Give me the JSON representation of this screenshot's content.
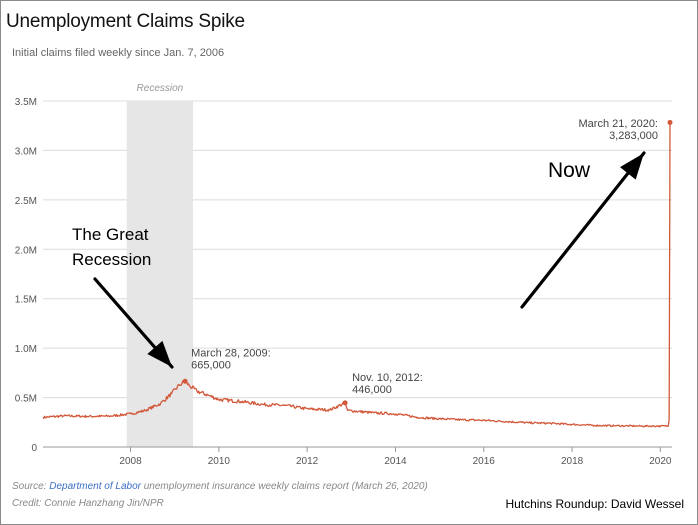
{
  "header": {
    "title": "Unemployment Claims Spike",
    "subtitle": "Initial claims filed weekly since Jan. 7, 2006"
  },
  "footer": {
    "source_prefix": "Source: ",
    "source_link": "Department of Labor",
    "source_suffix": " unemployment insurance weekly claims report (March 26, 2020)",
    "credit": "Credit: Connie Hanzhang Jin/NPR",
    "signature": "Hutchins Roundup: David Wessel"
  },
  "colors": {
    "line": "#d2583a",
    "recession_band": "#e6e6e6",
    "grid": "#dcdcdc",
    "axis_text": "#555555"
  },
  "chart_data": {
    "type": "line",
    "title": "Unemployment Claims Spike",
    "subtitle": "Initial claims filed weekly since Jan. 7, 2006",
    "xlim": [
      "2006-01-07",
      "2020-03-21"
    ],
    "ylim": [
      0,
      3500000
    ],
    "yticks": [
      {
        "value": 0,
        "label": "0"
      },
      {
        "value": 500000,
        "label": "0.5M"
      },
      {
        "value": 1000000,
        "label": "1.0M"
      },
      {
        "value": 1500000,
        "label": "1.5M"
      },
      {
        "value": 2000000,
        "label": "2.0M"
      },
      {
        "value": 2500000,
        "label": "2.5M"
      },
      {
        "value": 3000000,
        "label": "3.0M"
      },
      {
        "value": 3500000,
        "label": "3.5M"
      }
    ],
    "xticks": [
      {
        "value": "2008-01-01",
        "label": "2008"
      },
      {
        "value": "2010-01-01",
        "label": "2010"
      },
      {
        "value": "2012-01-01",
        "label": "2012"
      },
      {
        "value": "2014-01-01",
        "label": "2014"
      },
      {
        "value": "2016-01-01",
        "label": "2016"
      },
      {
        "value": "2018-01-01",
        "label": "2018"
      },
      {
        "value": "2020-01-01",
        "label": "2020"
      }
    ],
    "grid": true,
    "recession": {
      "label": "Recession",
      "start": "2007-12-01",
      "end": "2009-06-01"
    },
    "series": [
      {
        "points": [
          [
            "2006-01-07",
            300000
          ],
          [
            "2006-07-01",
            315000
          ],
          [
            "2007-01-06",
            310000
          ],
          [
            "2007-07-07",
            312000
          ],
          [
            "2008-01-05",
            335000
          ],
          [
            "2008-05-03",
            370000
          ],
          [
            "2008-09-06",
            440000
          ],
          [
            "2008-12-06",
            540000
          ],
          [
            "2009-02-07",
            625000
          ],
          [
            "2009-03-28",
            665000
          ],
          [
            "2009-05-02",
            620000
          ],
          [
            "2009-07-04",
            565000
          ],
          [
            "2009-10-03",
            525000
          ],
          [
            "2010-01-02",
            480000
          ],
          [
            "2010-07-03",
            460000
          ],
          [
            "2011-01-01",
            430000
          ],
          [
            "2011-07-02",
            420000
          ],
          [
            "2012-01-07",
            385000
          ],
          [
            "2012-07-07",
            375000
          ],
          [
            "2012-11-10",
            446000
          ],
          [
            "2012-12-01",
            370000
          ],
          [
            "2013-07-06",
            345000
          ],
          [
            "2014-01-04",
            335000
          ],
          [
            "2014-07-05",
            300000
          ],
          [
            "2015-01-03",
            285000
          ],
          [
            "2015-07-04",
            275000
          ],
          [
            "2016-01-02",
            270000
          ],
          [
            "2016-07-02",
            258000
          ],
          [
            "2017-01-07",
            245000
          ],
          [
            "2017-07-01",
            240000
          ],
          [
            "2018-01-06",
            228000
          ],
          [
            "2018-07-07",
            218000
          ],
          [
            "2019-01-05",
            215000
          ],
          [
            "2019-07-06",
            212000
          ],
          [
            "2020-01-04",
            212000
          ],
          [
            "2020-03-07",
            211000
          ],
          [
            "2020-03-14",
            282000
          ],
          [
            "2020-03-21",
            3283000
          ]
        ]
      }
    ],
    "annotations": [
      {
        "date": "2009-03-28",
        "value": 665000,
        "lines": [
          "March 28, 2009:",
          "665,000"
        ]
      },
      {
        "date": "2012-11-10",
        "value": 446000,
        "lines": [
          "Nov. 10, 2012:",
          "446,000"
        ]
      },
      {
        "date": "2020-03-21",
        "value": 3283000,
        "lines": [
          "March 21, 2020:",
          "3,283,000"
        ]
      }
    ],
    "callouts": [
      {
        "lines": [
          "The Great",
          "Recession"
        ]
      },
      {
        "lines": [
          "Now"
        ]
      }
    ]
  }
}
